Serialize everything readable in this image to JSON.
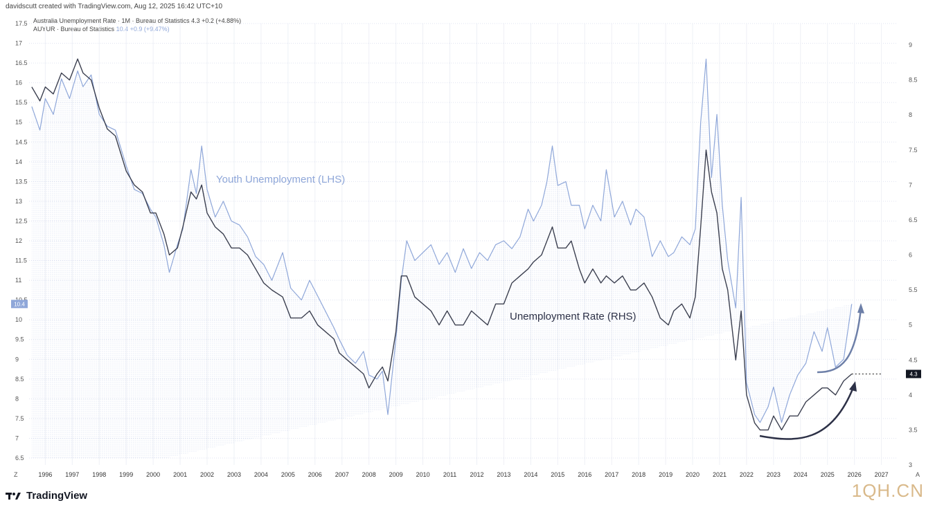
{
  "header": {
    "created_by": "davidscutt created with TradingView.com, Aug 12, 2025 16:42 UTC+10"
  },
  "legend": [
    {
      "name": "Australia Unemployment Rate · 1M · Bureau of Statistics",
      "value": "4.3",
      "change": "+0.2 (+4.88%)",
      "color": "#3b3f4f"
    },
    {
      "name": "AUYUR · Bureau of Statistics",
      "value": "10.4",
      "change": "+0.9 (+9.47%)",
      "color": "#8fa7d9"
    }
  ],
  "brand": {
    "label": "TradingView"
  },
  "watermark": "1QH.CN",
  "colors": {
    "unemployment": "#3b3f4f",
    "youth": "#8fa7d9",
    "grid": "#dfe3f0",
    "arrow": "#2d3147"
  },
  "chart_data": {
    "type": "line",
    "title": "Australia Unemployment Rate vs Youth Unemployment",
    "x_ticks": [
      "1996",
      "1997",
      "1998",
      "1999",
      "2000",
      "2001",
      "2002",
      "2003",
      "2004",
      "2005",
      "2006",
      "2007",
      "2008",
      "2009",
      "2010",
      "2011",
      "2012",
      "2013",
      "2014",
      "2015",
      "2016",
      "2017",
      "2018",
      "2019",
      "2020",
      "2021",
      "2022",
      "2023",
      "2024",
      "2025",
      "2026",
      "2027"
    ],
    "x_extra_labels": {
      "left": "Z",
      "right": "A"
    },
    "left_axis": {
      "ticks": [
        "17.5",
        "17",
        "16.5",
        "16",
        "15.5",
        "15",
        "14.5",
        "14",
        "13.5",
        "13",
        "12.5",
        "12",
        "11.5",
        "11",
        "10.5",
        "10",
        "9.5",
        "9",
        "8.5",
        "8",
        "7.5",
        "7",
        "6.5"
      ],
      "range": [
        6.5,
        17.5
      ],
      "current_label": "10.4"
    },
    "right_axis": {
      "ticks": [
        "9",
        "8.5",
        "8",
        "7.5",
        "7",
        "6.5",
        "6",
        "5.5",
        "5",
        "4.5",
        "4",
        "3.5",
        "3"
      ],
      "range": [
        3,
        9
      ],
      "current_label": "4.3"
    },
    "annotations": {
      "youth": "Youth Unemployment (LHS)",
      "rate": "Unemployment Rate (RHS)"
    },
    "series": [
      {
        "name": "Youth Unemployment (LHS)",
        "axis": "left",
        "points": [
          [
            1995.5,
            15.4
          ],
          [
            1995.8,
            14.8
          ],
          [
            1996.0,
            15.6
          ],
          [
            1996.3,
            15.2
          ],
          [
            1996.6,
            16.1
          ],
          [
            1996.9,
            15.6
          ],
          [
            1997.2,
            16.3
          ],
          [
            1997.4,
            15.9
          ],
          [
            1997.7,
            16.2
          ],
          [
            1998.0,
            15.2
          ],
          [
            1998.3,
            14.9
          ],
          [
            1998.6,
            14.8
          ],
          [
            1999.0,
            13.9
          ],
          [
            1999.3,
            13.3
          ],
          [
            1999.6,
            13.2
          ],
          [
            1999.9,
            12.8
          ],
          [
            2000.1,
            12.6
          ],
          [
            2000.4,
            11.9
          ],
          [
            2000.6,
            11.2
          ],
          [
            2000.9,
            11.9
          ],
          [
            2001.1,
            12.3
          ],
          [
            2001.4,
            13.8
          ],
          [
            2001.6,
            13.2
          ],
          [
            2001.8,
            14.4
          ],
          [
            2002.0,
            13.3
          ],
          [
            2002.3,
            12.6
          ],
          [
            2002.6,
            13.0
          ],
          [
            2002.9,
            12.5
          ],
          [
            2003.2,
            12.4
          ],
          [
            2003.5,
            12.1
          ],
          [
            2003.8,
            11.6
          ],
          [
            2004.1,
            11.4
          ],
          [
            2004.4,
            11.0
          ],
          [
            2004.8,
            11.7
          ],
          [
            2005.1,
            10.8
          ],
          [
            2005.5,
            10.5
          ],
          [
            2005.8,
            11.0
          ],
          [
            2006.1,
            10.6
          ],
          [
            2006.4,
            10.2
          ],
          [
            2006.7,
            9.8
          ],
          [
            2006.9,
            9.5
          ],
          [
            2007.2,
            9.1
          ],
          [
            2007.5,
            8.9
          ],
          [
            2007.8,
            9.2
          ],
          [
            2008.0,
            8.6
          ],
          [
            2008.3,
            8.5
          ],
          [
            2008.5,
            8.7
          ],
          [
            2008.7,
            7.6
          ],
          [
            2009.0,
            9.5
          ],
          [
            2009.2,
            11.0
          ],
          [
            2009.4,
            12.0
          ],
          [
            2009.7,
            11.5
          ],
          [
            2010.0,
            11.7
          ],
          [
            2010.3,
            11.9
          ],
          [
            2010.6,
            11.4
          ],
          [
            2010.9,
            11.7
          ],
          [
            2011.2,
            11.2
          ],
          [
            2011.5,
            11.8
          ],
          [
            2011.8,
            11.3
          ],
          [
            2012.1,
            11.7
          ],
          [
            2012.4,
            11.5
          ],
          [
            2012.7,
            11.9
          ],
          [
            2013.0,
            12.0
          ],
          [
            2013.3,
            11.8
          ],
          [
            2013.6,
            12.1
          ],
          [
            2013.9,
            12.8
          ],
          [
            2014.1,
            12.5
          ],
          [
            2014.4,
            12.9
          ],
          [
            2014.6,
            13.5
          ],
          [
            2014.8,
            14.4
          ],
          [
            2015.0,
            13.4
          ],
          [
            2015.3,
            13.5
          ],
          [
            2015.5,
            12.9
          ],
          [
            2015.8,
            12.9
          ],
          [
            2016.0,
            12.3
          ],
          [
            2016.3,
            12.9
          ],
          [
            2016.6,
            12.5
          ],
          [
            2016.8,
            13.8
          ],
          [
            2017.1,
            12.6
          ],
          [
            2017.4,
            13.0
          ],
          [
            2017.7,
            12.4
          ],
          [
            2017.9,
            12.8
          ],
          [
            2018.2,
            12.6
          ],
          [
            2018.5,
            11.6
          ],
          [
            2018.8,
            12.0
          ],
          [
            2019.1,
            11.6
          ],
          [
            2019.3,
            11.7
          ],
          [
            2019.6,
            12.1
          ],
          [
            2019.9,
            11.9
          ],
          [
            2020.1,
            12.3
          ],
          [
            2020.3,
            15.0
          ],
          [
            2020.5,
            16.6
          ],
          [
            2020.7,
            13.6
          ],
          [
            2020.9,
            15.2
          ],
          [
            2021.1,
            12.9
          ],
          [
            2021.3,
            11.5
          ],
          [
            2021.6,
            10.3
          ],
          [
            2021.8,
            13.1
          ],
          [
            2022.0,
            8.4
          ],
          [
            2022.3,
            7.6
          ],
          [
            2022.5,
            7.4
          ],
          [
            2022.8,
            7.8
          ],
          [
            2023.0,
            8.3
          ],
          [
            2023.3,
            7.4
          ],
          [
            2023.6,
            8.1
          ],
          [
            2023.9,
            8.6
          ],
          [
            2024.2,
            8.9
          ],
          [
            2024.5,
            9.7
          ],
          [
            2024.8,
            9.2
          ],
          [
            2025.0,
            9.8
          ],
          [
            2025.3,
            8.8
          ],
          [
            2025.6,
            9.0
          ],
          [
            2025.9,
            10.4
          ]
        ]
      },
      {
        "name": "Unemployment Rate (RHS)",
        "axis": "right",
        "points": [
          [
            1995.5,
            8.4
          ],
          [
            1995.8,
            8.2
          ],
          [
            1996.0,
            8.4
          ],
          [
            1996.3,
            8.3
          ],
          [
            1996.6,
            8.6
          ],
          [
            1996.9,
            8.5
          ],
          [
            1997.2,
            8.8
          ],
          [
            1997.4,
            8.6
          ],
          [
            1997.7,
            8.5
          ],
          [
            1998.0,
            8.1
          ],
          [
            1998.3,
            7.8
          ],
          [
            1998.6,
            7.7
          ],
          [
            1999.0,
            7.2
          ],
          [
            1999.3,
            7.0
          ],
          [
            1999.6,
            6.9
          ],
          [
            1999.9,
            6.6
          ],
          [
            2000.1,
            6.6
          ],
          [
            2000.4,
            6.3
          ],
          [
            2000.6,
            6.0
          ],
          [
            2000.9,
            6.1
          ],
          [
            2001.1,
            6.4
          ],
          [
            2001.4,
            6.9
          ],
          [
            2001.6,
            6.8
          ],
          [
            2001.8,
            7.0
          ],
          [
            2002.0,
            6.6
          ],
          [
            2002.3,
            6.4
          ],
          [
            2002.6,
            6.3
          ],
          [
            2002.9,
            6.1
          ],
          [
            2003.2,
            6.1
          ],
          [
            2003.5,
            6.0
          ],
          [
            2003.8,
            5.8
          ],
          [
            2004.1,
            5.6
          ],
          [
            2004.4,
            5.5
          ],
          [
            2004.8,
            5.4
          ],
          [
            2005.1,
            5.1
          ],
          [
            2005.5,
            5.1
          ],
          [
            2005.8,
            5.2
          ],
          [
            2006.1,
            5.0
          ],
          [
            2006.4,
            4.9
          ],
          [
            2006.7,
            4.8
          ],
          [
            2006.9,
            4.6
          ],
          [
            2007.2,
            4.5
          ],
          [
            2007.5,
            4.4
          ],
          [
            2007.8,
            4.3
          ],
          [
            2008.0,
            4.1
          ],
          [
            2008.3,
            4.3
          ],
          [
            2008.5,
            4.4
          ],
          [
            2008.7,
            4.2
          ],
          [
            2009.0,
            4.9
          ],
          [
            2009.2,
            5.7
          ],
          [
            2009.4,
            5.7
          ],
          [
            2009.7,
            5.4
          ],
          [
            2010.0,
            5.3
          ],
          [
            2010.3,
            5.2
          ],
          [
            2010.6,
            5.0
          ],
          [
            2010.9,
            5.2
          ],
          [
            2011.2,
            5.0
          ],
          [
            2011.5,
            5.0
          ],
          [
            2011.8,
            5.2
          ],
          [
            2012.1,
            5.1
          ],
          [
            2012.4,
            5.0
          ],
          [
            2012.7,
            5.3
          ],
          [
            2013.0,
            5.3
          ],
          [
            2013.3,
            5.6
          ],
          [
            2013.6,
            5.7
          ],
          [
            2013.9,
            5.8
          ],
          [
            2014.1,
            5.9
          ],
          [
            2014.4,
            6.0
          ],
          [
            2014.6,
            6.2
          ],
          [
            2014.8,
            6.4
          ],
          [
            2015.0,
            6.1
          ],
          [
            2015.3,
            6.1
          ],
          [
            2015.5,
            6.2
          ],
          [
            2015.8,
            5.8
          ],
          [
            2016.0,
            5.6
          ],
          [
            2016.3,
            5.8
          ],
          [
            2016.6,
            5.6
          ],
          [
            2016.8,
            5.7
          ],
          [
            2017.1,
            5.6
          ],
          [
            2017.4,
            5.7
          ],
          [
            2017.7,
            5.5
          ],
          [
            2017.9,
            5.5
          ],
          [
            2018.2,
            5.6
          ],
          [
            2018.5,
            5.4
          ],
          [
            2018.8,
            5.1
          ],
          [
            2019.1,
            5.0
          ],
          [
            2019.3,
            5.2
          ],
          [
            2019.6,
            5.3
          ],
          [
            2019.9,
            5.1
          ],
          [
            2020.1,
            5.4
          ],
          [
            2020.3,
            6.4
          ],
          [
            2020.5,
            7.5
          ],
          [
            2020.7,
            6.9
          ],
          [
            2020.9,
            6.6
          ],
          [
            2021.1,
            5.8
          ],
          [
            2021.3,
            5.5
          ],
          [
            2021.6,
            4.5
          ],
          [
            2021.8,
            5.2
          ],
          [
            2022.0,
            4.0
          ],
          [
            2022.3,
            3.6
          ],
          [
            2022.5,
            3.5
          ],
          [
            2022.8,
            3.5
          ],
          [
            2023.0,
            3.7
          ],
          [
            2023.3,
            3.5
          ],
          [
            2023.6,
            3.7
          ],
          [
            2023.9,
            3.7
          ],
          [
            2024.2,
            3.9
          ],
          [
            2024.5,
            4.0
          ],
          [
            2024.8,
            4.1
          ],
          [
            2025.0,
            4.1
          ],
          [
            2025.3,
            4.0
          ],
          [
            2025.6,
            4.2
          ],
          [
            2025.9,
            4.3
          ]
        ]
      }
    ]
  }
}
